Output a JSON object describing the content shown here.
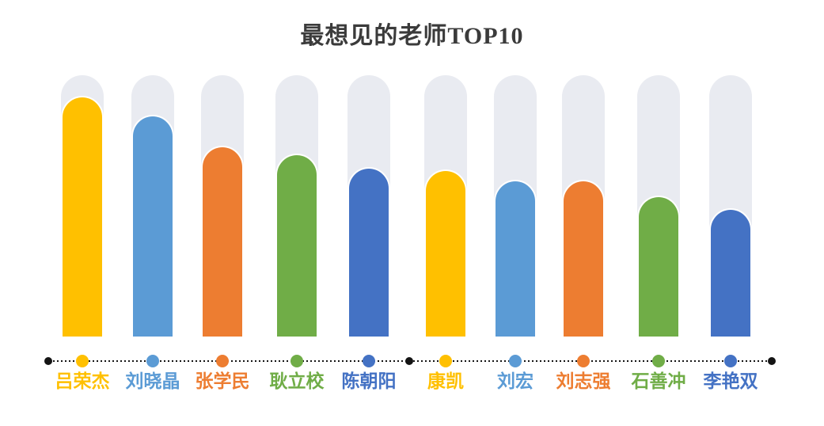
{
  "title": {
    "text": "最想见的老师TOP10",
    "color": "#3b3b3b"
  },
  "chart_data": {
    "type": "bar",
    "orientation": "vertical",
    "title": "最想见的老师TOP10",
    "categories": [
      "吕荣杰",
      "刘晓晶",
      "张学民",
      "耿立校",
      "陈朝阳",
      "康凯",
      "刘宏",
      "刘志强",
      "石善冲",
      "李艳双"
    ],
    "values": [
      92,
      85,
      73,
      70,
      65,
      64,
      60,
      60,
      54,
      49
    ],
    "values_estimated_from_pixels": true,
    "ylim": [
      0,
      100
    ],
    "xlabel": "",
    "ylabel": "",
    "grid": false,
    "legend": "none",
    "data_labels": "none",
    "bar_colors": [
      "#FFC000",
      "#5B9BD5",
      "#ED7D31",
      "#70AD47",
      "#4472C4",
      "#FFC000",
      "#5B9BD5",
      "#ED7D31",
      "#70AD47",
      "#4472C4"
    ],
    "label_colors": [
      "#FFC000",
      "#5B9BD5",
      "#ED7D31",
      "#70AD47",
      "#4472C4",
      "#FFC000",
      "#5B9BD5",
      "#ED7D31",
      "#70AD47",
      "#4472C4"
    ],
    "track_color": "#E9EBF1",
    "bar_outline_color": "#FFFFFF",
    "axis_style": {
      "line": "dotted",
      "line_color": "#141414",
      "endpoint_dot_color": "#141414",
      "endpoint_dot_count": 3
    }
  }
}
